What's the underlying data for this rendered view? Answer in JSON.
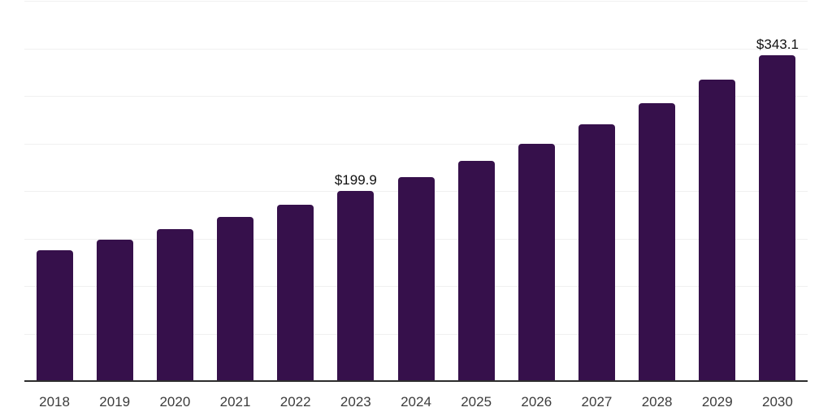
{
  "chart": {
    "background_color": "#ffffff",
    "bar_color": "#36104b",
    "axis_line_color": "#2d2d2d",
    "gridline_color": "#f0f0f0",
    "tick_label_color": "#3c3c3c",
    "value_label_color": "#111111"
  },
  "chart_data": {
    "type": "bar",
    "title": "",
    "xlabel": "",
    "ylabel": "",
    "categories": [
      "2018",
      "2019",
      "2020",
      "2021",
      "2022",
      "2023",
      "2024",
      "2025",
      "2026",
      "2027",
      "2028",
      "2029",
      "2030"
    ],
    "values": [
      137.6,
      148.3,
      159.5,
      173.0,
      185.5,
      199.9,
      214.5,
      231.5,
      249.5,
      270.0,
      292.3,
      317.0,
      343.1
    ],
    "data_labels": {
      "2023": "$199.9",
      "2030": "$343.1"
    },
    "ylim": [
      0,
      400
    ],
    "y_gridline_step": 50,
    "y_axis_labels_visible": false,
    "grid": "horizontal",
    "legend": "none"
  }
}
